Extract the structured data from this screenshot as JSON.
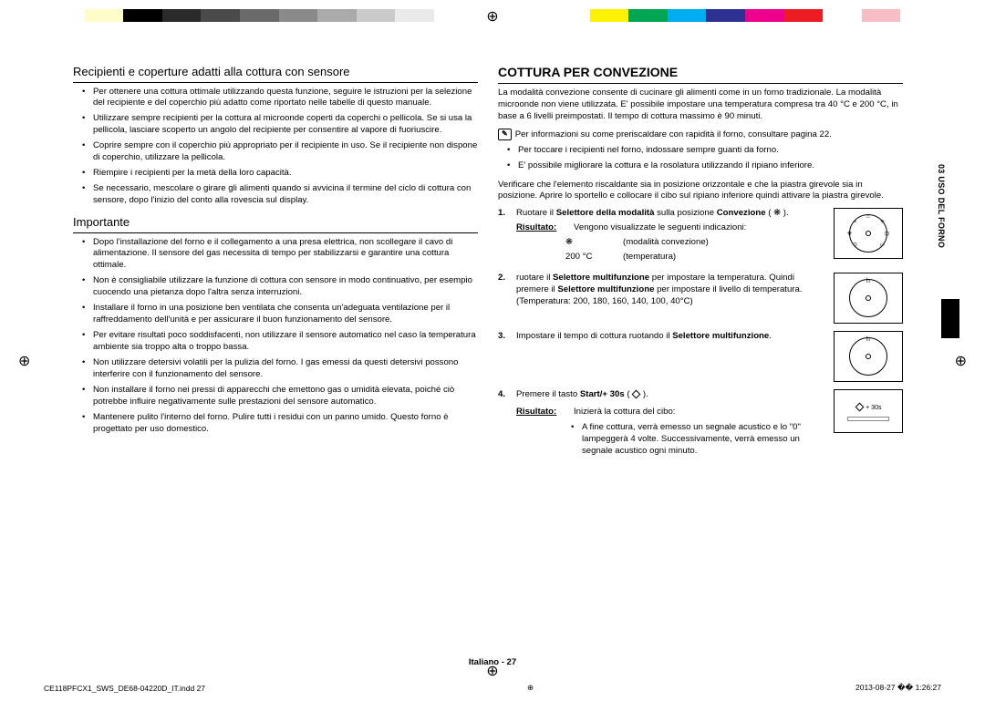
{
  "colorbar": [
    "#ffffff",
    "#fefcc8",
    "#000000",
    "#2a2a2a",
    "#4a4a4a",
    "#6a6a6a",
    "#8a8a8a",
    "#aaaaaa",
    "#cacaca",
    "#eaeaea",
    "#ffffff",
    "#ffffff",
    "#ffffff",
    "#ffffff",
    "#fff200",
    "#00a651",
    "#00aeef",
    "#2e3192",
    "#ec008c",
    "#ed1c24",
    "#ffffff",
    "#f7bfc5",
    "#ffffff"
  ],
  "left": {
    "h1": "Recipienti e coperture adatti alla cottura con sensore",
    "bullets1": [
      "Per ottenere una cottura ottimale utilizzando questa funzione, seguire le istruzioni per la selezione del recipiente e del coperchio più adatto come riportato nelle tabelle di questo manuale.",
      "Utilizzare sempre recipienti per la cottura al microonde coperti da coperchi o pellicola. Se si usa la pellicola, lasciare scoperto un angolo del recipiente per consentire al vapore di fuoriuscire.",
      "Coprire sempre con il coperchio più appropriato per il recipiente in uso. Se il recipiente non dispone di coperchio, utilizzare la pellicola.",
      "Riempire i recipienti per la metà della loro capacità.",
      "Se necessario, mescolare o girare gli alimenti quando si avvicina il termine del ciclo di cottura con sensore, dopo l'inizio del conto alla rovescia sul display."
    ],
    "h2": "Importante",
    "bullets2": [
      "Dopo l'installazione del forno e il collegamento a una presa elettrica, non scollegare il cavo di alimentazione. Il sensore del gas necessita di tempo per stabilizzarsi e garantire una cottura ottimale.",
      "Non è consigliabile utilizzare la funzione di cottura con sensore in modo continuativo, per esempio cuocendo una pietanza dopo l'altra senza interruzioni.",
      "Installare il forno in una posizione ben ventilata che consenta un'adeguata ventilazione per il raffreddamento dell'unità e per assicurare il buon funzionamento del sensore.",
      "Per evitare risultati poco soddisfacenti, non utilizzare il sensore automatico nel caso la temperatura ambiente sia troppo alta o troppo bassa.",
      "Non utilizzare detersivi volatili per la pulizia del forno. I gas emessi da questi detersivi possono interferire con il funzionamento del sensore.",
      "Non installare il forno nei pressi di apparecchi che emettono gas o umidità elevata, poiché ciò potrebbe influire negativamente sulle prestazioni del sensore automatico.",
      "Mantenere pulito l'interno del forno. Pulire tutti i residui con un panno umido. Questo forno è progettato per uso domestico."
    ]
  },
  "right": {
    "title": "COTTURA PER CONVEZIONE",
    "intro": "La modalità convezione consente di cucinare gli alimenti come in un forno tradizionale. La modalità microonde non viene utilizzata. E' possibile impostare una temperatura compresa tra 40 °C e 200 °C, in base a 6 livelli preimpostati. Il tempo di cottura massimo è 90 minuti.",
    "note1": "Per informazioni su come preriscaldare con rapidità il forno, consultare pagina 22.",
    "notebullets": [
      "Per toccare i recipienti nel forno, indossare sempre guanti da forno.",
      "E' possibile migliorare la cottura e la rosolatura utilizzando il ripiano inferiore."
    ],
    "note2": "Verificare che l'elemento riscaldante sia in posizione orizzontale e che la piastra girevole sia in posizione. Aprire lo sportello e collocare il cibo sul ripiano inferiore quindi attivare la piastra girevole.",
    "step1a": "Ruotare il ",
    "step1b": "Selettore della modalità",
    "step1c": " sulla posizione ",
    "step1d": "Convezione",
    "step1e": " ( ❋ ).",
    "risultato": "Risultato:",
    "s1r1": "Vengono visualizzate le seguenti indicazioni:",
    "s1r2a": "❋",
    "s1r2b": "(modalità convezione)",
    "s1r3a": "200 °C",
    "s1r3b": "(temperatura)",
    "step2a": "ruotare il ",
    "step2b": "Selettore multifunzione",
    "step2c": " per impostare la temperatura. Quindi premere il ",
    "step2d": "Selettore multifunzione",
    "step2e": " per impostare il livello di temperatura.",
    "step2f": "(Temperatura: 200, 180, 160, 140, 100, 40°C)",
    "step3a": "Impostare il tempo di cottura ruotando il ",
    "step3b": "Selettore multifunzione",
    "step3c": ".",
    "step4a": "Premere il tasto ",
    "step4b": "Start/+ 30s",
    "step4c": " ( ",
    "step4d": " ).",
    "s4r1": "Inizierà la cottura del cibo:",
    "s4b1": "A fine cottura, verrà emesso un segnale acustico e lo \"0\" lampeggerà 4 volte. Successivamente, verrà emesso un segnale acustico ogni minuto.",
    "btn30": "+ 30s"
  },
  "sidetab": "03 USO DEL FORNO",
  "footer_center": "Italiano - 27",
  "footer_left": "CE118PFCX1_SWS_DE68-04220D_IT.indd   27",
  "footer_right": "2013-08-27   �� 1:26:27"
}
